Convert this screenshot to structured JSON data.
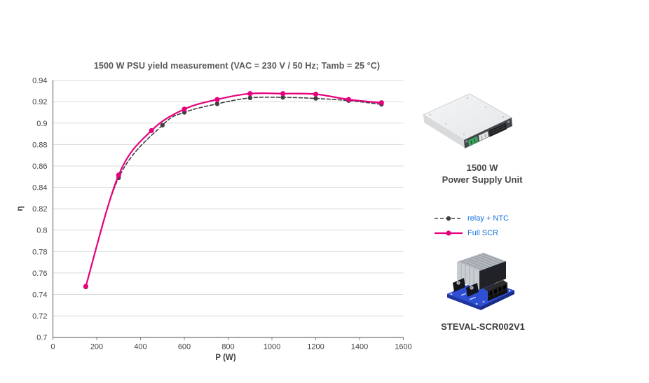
{
  "chart_data": {
    "type": "line",
    "title": "1500 W PSU yield measurement (VAC = 230 V / 50 Hz; Tamb = 25 °C)",
    "xlabel": "P (W)",
    "ylabel": "η",
    "xlim": [
      0,
      1600
    ],
    "ylim": [
      0.7,
      0.94
    ],
    "xticks": [
      0,
      200,
      400,
      600,
      800,
      1000,
      1200,
      1400,
      1600
    ],
    "yticks": [
      "0.94",
      "0.92",
      "0.9",
      "0.88",
      "0.86",
      "0.84",
      "0.82",
      "0.8",
      "0.78",
      "0.76",
      "0.74",
      "0.72",
      "0.7"
    ],
    "grid": "horizontal",
    "grid_color": "#D9D9D9",
    "axis_color": "#7F7F7F",
    "tick_label_color": "#404040",
    "legend_position": "right-middle",
    "series": [
      {
        "name": "relay + NTC",
        "color": "#404040",
        "style": "dashed",
        "dash": "5 3",
        "line_width": 1.6,
        "marker": "circle",
        "marker_r": 3.2,
        "x": [
          150,
          300,
          500,
          600,
          750,
          900,
          1050,
          1200,
          1350,
          1500
        ],
        "y": [
          0.747,
          0.849,
          0.898,
          0.91,
          0.918,
          0.9235,
          0.924,
          0.923,
          0.921,
          0.9175
        ]
      },
      {
        "name": "Full SCR",
        "color": "#E6007E",
        "style": "solid",
        "dash": "",
        "line_width": 2.2,
        "marker": "circle",
        "marker_r": 3.6,
        "x": [
          150,
          300,
          450,
          600,
          750,
          900,
          1050,
          1200,
          1350,
          1500
        ],
        "y": [
          0.7475,
          0.8515,
          0.893,
          0.913,
          0.922,
          0.9275,
          0.9275,
          0.927,
          0.922,
          0.919
        ]
      }
    ]
  },
  "legend": {
    "text_color": "#1570E0"
  },
  "right_panel": {
    "psu_caption_line1": "1500 W",
    "psu_caption_line2": "Power Supply Unit",
    "board_caption": "STEVAL-SCR002V1"
  }
}
